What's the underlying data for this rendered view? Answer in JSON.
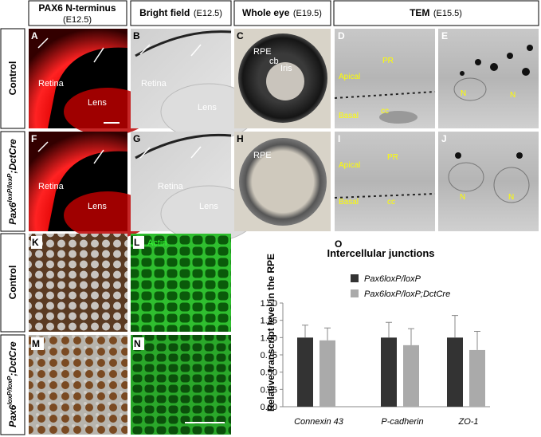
{
  "headers": [
    {
      "title": "PAX6 N-terminus",
      "stage": "(E12.5)"
    },
    {
      "title": "Bright field",
      "stage": "(E12.5)"
    },
    {
      "title": "Whole eye",
      "stage": "(E19.5)"
    },
    {
      "title": "TEM",
      "stage": "(E15.5)"
    }
  ],
  "row_labels": [
    [
      "Control"
    ],
    [
      "Pax6",
      "loxP/loxP",
      ";DctCre"
    ]
  ],
  "panels": [
    {
      "letter": "A",
      "labels": [
        "Retina",
        "Lens"
      ]
    },
    {
      "letter": "B",
      "labels": [
        "Retina",
        "Lens"
      ]
    },
    {
      "letter": "C",
      "labels": [
        "RPE",
        "cb",
        "Iris"
      ]
    },
    {
      "letter": "D",
      "labels": [
        "PR",
        "Apical",
        "Basal",
        "cc"
      ]
    },
    {
      "letter": "E",
      "labels": [
        "N",
        "N"
      ]
    },
    {
      "letter": "F",
      "labels": [
        "Retina",
        "Lens"
      ]
    },
    {
      "letter": "G",
      "labels": [
        "Retina",
        "Lens"
      ]
    },
    {
      "letter": "H",
      "labels": [
        "RPE"
      ]
    },
    {
      "letter": "I",
      "labels": [
        "Apical",
        "PR",
        "Basal",
        "cc"
      ]
    },
    {
      "letter": "J",
      "labels": [
        "N",
        "N"
      ]
    },
    {
      "letter": "K",
      "labels": []
    },
    {
      "letter": "L",
      "labels": [
        "Actin"
      ]
    },
    {
      "letter": "M",
      "labels": []
    },
    {
      "letter": "N",
      "labels": []
    },
    {
      "letter": "O",
      "labels": []
    }
  ],
  "chart_data": {
    "type": "bar",
    "title": "Intercellular junctions",
    "ylabel": "Relative transcript level in the RPE",
    "categories": [
      "Connexin 43",
      "P-cadherin",
      "ZO-1"
    ],
    "series": [
      {
        "name": "Pax6loxP/loxP",
        "color": "#333333",
        "values": [
          1.0,
          1.0,
          1.0
        ],
        "errors": [
          0.18,
          0.22,
          0.32
        ]
      },
      {
        "name": "Pax6loxP/loxP;DctCre",
        "color": "#aaaaaa",
        "values": [
          0.96,
          0.89,
          0.82
        ],
        "errors": [
          0.18,
          0.24,
          0.27
        ]
      }
    ],
    "ylim": [
      0,
      1.5
    ],
    "yticks": [
      {
        "value": 0,
        "label": "0.00"
      },
      {
        "value": 0.25,
        "label": "0.25"
      },
      {
        "value": 0.5,
        "label": "0.50"
      },
      {
        "value": 0.75,
        "label": "0.75"
      },
      {
        "value": 1,
        "label": "1.00"
      },
      {
        "value": 1.25,
        "label": "1.25"
      },
      {
        "value": 1.5,
        "label": "1.50"
      }
    ],
    "grid": false
  }
}
